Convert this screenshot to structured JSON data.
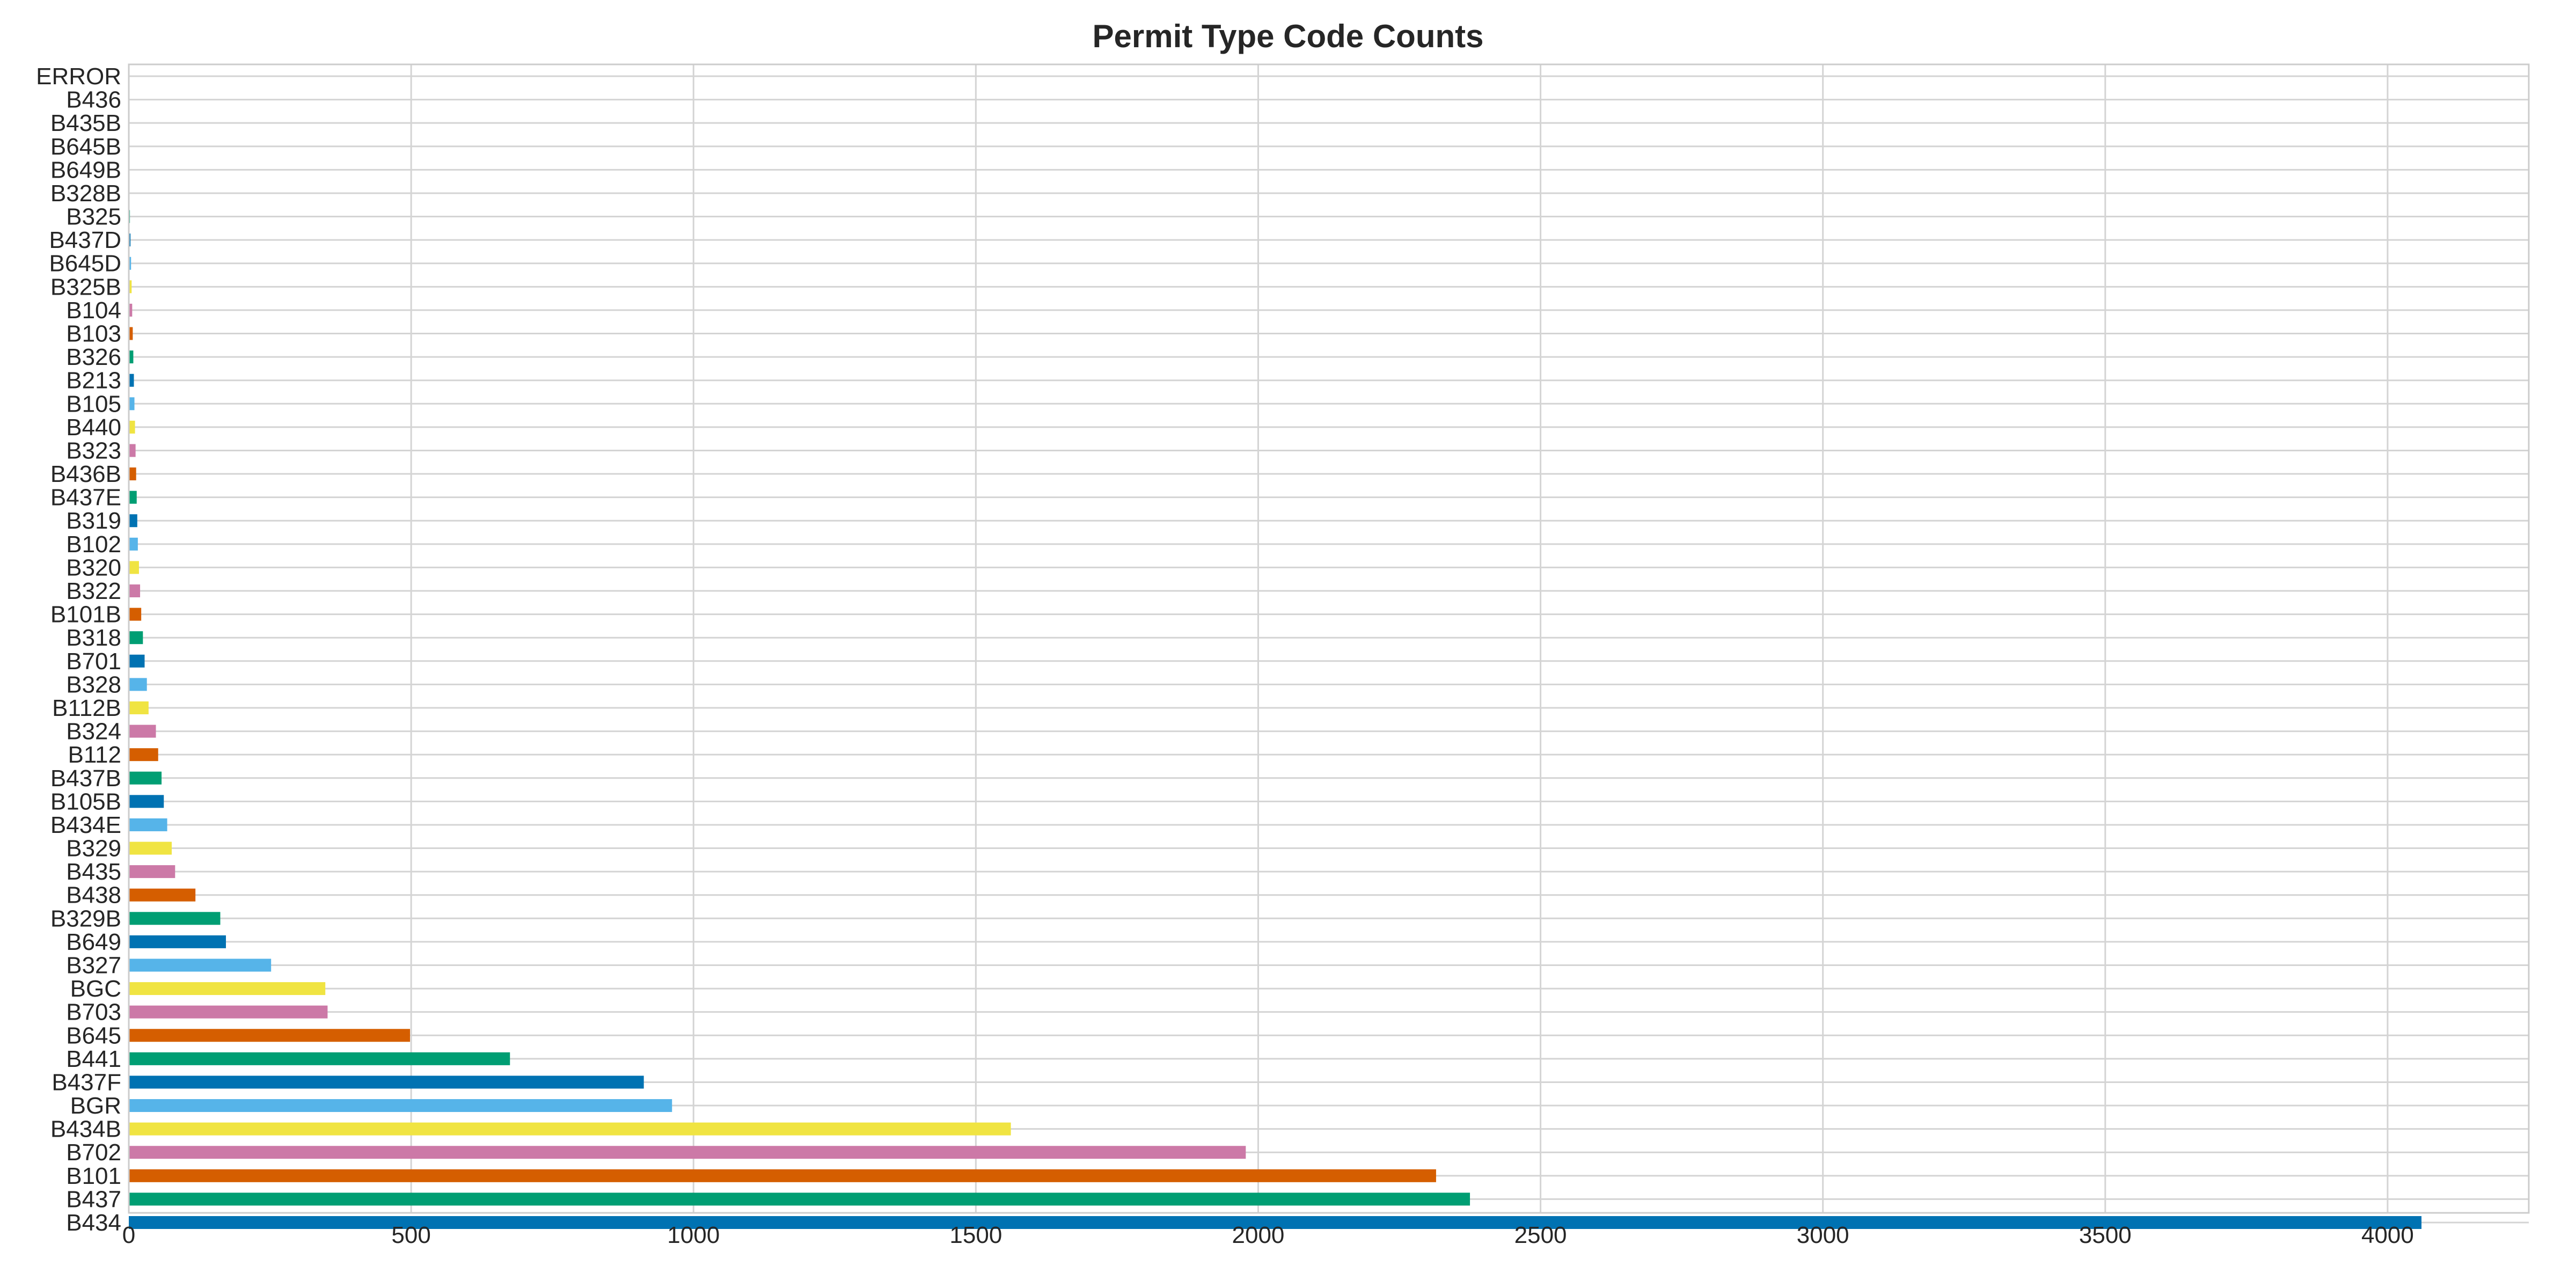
{
  "chart_data": {
    "type": "bar",
    "orientation": "horizontal",
    "title": "Permit Type Code Counts",
    "xlabel": "",
    "ylabel": "",
    "xlim": [
      0,
      4250
    ],
    "xticks": [
      0,
      500,
      1000,
      1500,
      2000,
      2500,
      3000,
      3500,
      4000
    ],
    "grid": true,
    "categories": [
      "B434",
      "B437",
      "B101",
      "B702",
      "B434B",
      "BGR",
      "B437F",
      "B441",
      "B645",
      "B703",
      "BGC",
      "B327",
      "B649",
      "B329B",
      "B438",
      "B435",
      "B329",
      "B434E",
      "B105B",
      "B437B",
      "B112",
      "B324",
      "B112B",
      "B328",
      "B701",
      "B318",
      "B101B",
      "B322",
      "B320",
      "B102",
      "B319",
      "B437E",
      "B436B",
      "B323",
      "B440",
      "B105",
      "B213",
      "B326",
      "B103",
      "B104",
      "B325B",
      "B645D",
      "B437D",
      "B325",
      "B328B",
      "B649B",
      "B645B",
      "B435B",
      "B436",
      "ERROR"
    ],
    "values": [
      4060,
      2375,
      2315,
      1978,
      1562,
      962,
      912,
      675,
      498,
      352,
      348,
      252,
      172,
      162,
      118,
      82,
      76,
      68,
      62,
      58,
      52,
      48,
      35,
      32,
      28,
      25,
      22,
      20,
      18,
      16,
      15,
      14,
      13,
      12,
      11,
      10,
      9,
      8,
      7,
      6,
      5,
      4,
      3,
      2,
      1,
      1,
      1,
      1,
      1,
      1
    ],
    "colors": [
      "#0072b2",
      "#009e73",
      "#d55e00",
      "#cc79a7",
      "#f0e442",
      "#56b4e9"
    ]
  }
}
